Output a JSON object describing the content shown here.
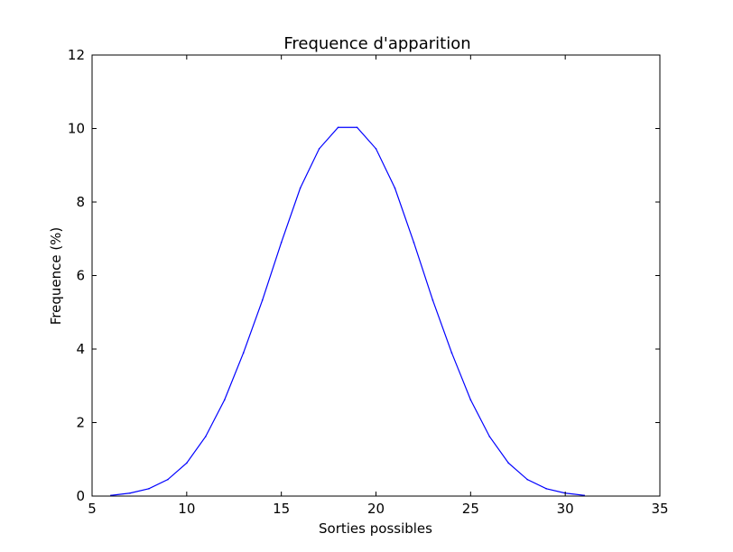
{
  "chart_data": {
    "type": "line",
    "title": "Frequence d'apparition",
    "xlabel": "Sorties possibles",
    "ylabel": "Frequence (%)",
    "xlim": [
      5,
      35
    ],
    "ylim": [
      0,
      12
    ],
    "x_ticks": [
      5,
      10,
      15,
      20,
      25,
      30,
      35
    ],
    "y_ticks": [
      0,
      2,
      4,
      6,
      8,
      10,
      12
    ],
    "grid": false,
    "line_color": "#0000ff",
    "series": [
      {
        "x": [
          6,
          7,
          8,
          9,
          10,
          11,
          12,
          13,
          14,
          15,
          16,
          17,
          18,
          19,
          20,
          21,
          22,
          23,
          24,
          25,
          26,
          27,
          28,
          29,
          30,
          31
        ],
        "y": [
          0.02,
          0.08,
          0.2,
          0.45,
          0.9,
          1.62,
          2.62,
          3.9,
          5.33,
          6.9,
          8.38,
          9.45,
          10.03,
          10.03,
          9.45,
          8.38,
          6.9,
          5.33,
          3.9,
          2.62,
          1.62,
          0.9,
          0.45,
          0.2,
          0.08,
          0.02
        ]
      }
    ]
  }
}
